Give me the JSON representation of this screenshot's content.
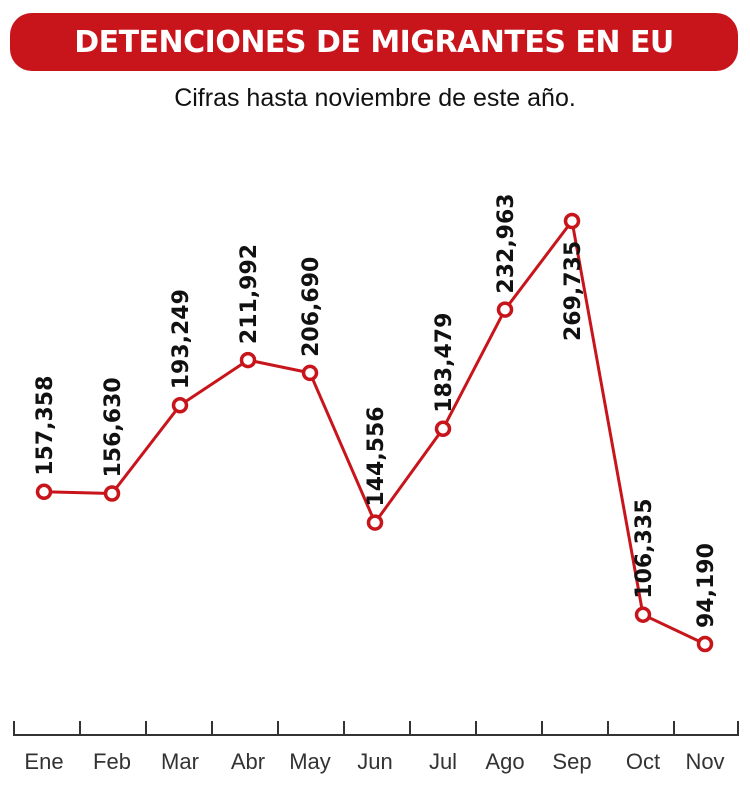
{
  "header": {
    "title": "DETENCIONES DE MIGRANTES EN EU",
    "subtitle": "Cifras hasta noviembre de este año."
  },
  "colors": {
    "accent": "#c8151b",
    "line": "#c8151b",
    "text": "#111111",
    "axis": "#333333"
  },
  "chart_data": {
    "type": "line",
    "title": "DETENCIONES DE MIGRANTES EN EU",
    "subtitle": "Cifras hasta noviembre de este año.",
    "categories": [
      "Ene",
      "Feb",
      "Mar",
      "Abr",
      "May",
      "Jun",
      "Jul",
      "Ago",
      "Sep",
      "Oct",
      "Nov"
    ],
    "series": [
      {
        "values": [
          157358,
          156630,
          193249,
          211992,
          206690,
          144556,
          183479,
          232963,
          269735,
          106335,
          94190
        ]
      }
    ],
    "data_labels": [
      "157,358",
      "156,630",
      "193,249",
      "211,992",
      "206,690",
      "144,556",
      "183,479",
      "232,963",
      "269,735",
      "106,335",
      "94,190"
    ],
    "grid": false,
    "legend": "none"
  }
}
